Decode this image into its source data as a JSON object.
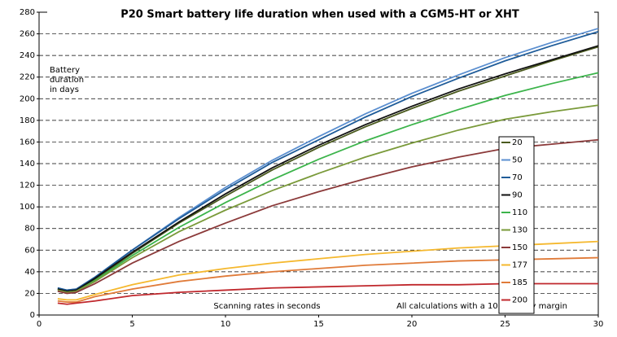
{
  "chart_data": {
    "type": "line",
    "title": "P20 Smart battery life duration when used with a CGM5-HT or XHT",
    "y_label": "Battery duration in days",
    "x_label": "Scanning rates in seconds",
    "annotation": "All calculations with a 10 % safety margin",
    "x": [
      1,
      1.5,
      2,
      3,
      5,
      7.5,
      10,
      12.5,
      15,
      17.5,
      20,
      22.5,
      25,
      27.5,
      30
    ],
    "series": [
      {
        "name": "20",
        "color": "#4b5a1e",
        "values": [
          24,
          22,
          23,
          33,
          57,
          85,
          110,
          134,
          155,
          174,
          191,
          207,
          221,
          235,
          248
        ]
      },
      {
        "name": "50",
        "color": "#5b8fd0",
        "values": [
          25,
          23,
          24,
          35,
          60,
          90,
          118,
          143,
          165,
          186,
          205,
          222,
          238,
          252,
          265
        ]
      },
      {
        "name": "70",
        "color": "#1f5c99",
        "values": [
          25,
          23,
          24,
          35,
          60,
          89,
          116,
          141,
          162,
          183,
          202,
          219,
          235,
          249,
          262
        ]
      },
      {
        "name": "90",
        "color": "#111111",
        "values": [
          24,
          22,
          23,
          34,
          58,
          86,
          112,
          136,
          157,
          176,
          193,
          209,
          223,
          236,
          249
        ]
      },
      {
        "name": "110",
        "color": "#3cb44b",
        "values": [
          23,
          21,
          22,
          32,
          55,
          81,
          104,
          125,
          144,
          161,
          176,
          190,
          203,
          214,
          224
        ]
      },
      {
        "name": "130",
        "color": "#7a9a3a",
        "values": [
          23,
          21,
          22,
          31,
          53,
          77,
          97,
          115,
          131,
          146,
          159,
          171,
          181,
          188,
          194
        ]
      },
      {
        "name": "150",
        "color": "#8b3a3a",
        "values": [
          22,
          20,
          21,
          29,
          48,
          68,
          85,
          101,
          114,
          126,
          137,
          146,
          154,
          158,
          162
        ]
      },
      {
        "name": "177",
        "color": "#f5b82e",
        "values": [
          15,
          14,
          14,
          19,
          28,
          37,
          43,
          48,
          52,
          56,
          59,
          62,
          64,
          66,
          68
        ]
      },
      {
        "name": "185",
        "color": "#e07b39",
        "values": [
          13,
          12,
          12,
          17,
          24,
          31,
          36,
          40,
          43,
          46,
          48,
          50,
          51,
          52,
          53
        ]
      },
      {
        "name": "200",
        "color": "#c0282d",
        "values": [
          11,
          10,
          11,
          13,
          18,
          21,
          23,
          25,
          26,
          27,
          28,
          28,
          29,
          29,
          29
        ]
      }
    ],
    "xlim": [
      0,
      30
    ],
    "xticks": [
      0,
      5,
      10,
      15,
      20,
      25,
      30
    ],
    "ylim": [
      0,
      280
    ],
    "yticks": [
      0,
      20,
      40,
      60,
      80,
      100,
      120,
      140,
      160,
      180,
      200,
      220,
      240,
      260,
      280
    ],
    "grid": true
  }
}
